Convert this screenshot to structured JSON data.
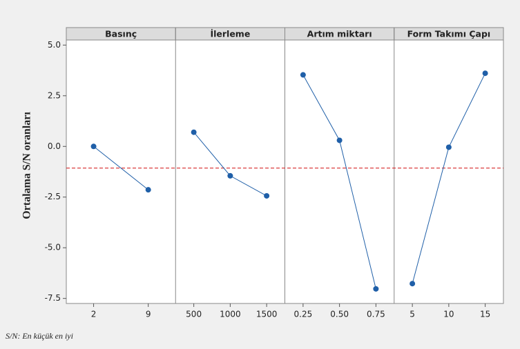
{
  "chart_data": {
    "type": "line",
    "ylabel": "Ortalama S/N oranları",
    "footnote": "S/N: En küçük en iyi",
    "ylim": [
      -7.75,
      5.25
    ],
    "yticks": [
      {
        "value": 5,
        "label": "5.0"
      },
      {
        "value": 2.5,
        "label": "2.5"
      },
      {
        "value": 0,
        "label": "0.0"
      },
      {
        "value": -2.5,
        "label": "-2.5"
      },
      {
        "value": -5,
        "label": "-5.0"
      },
      {
        "value": -7.5,
        "label": "-7.5"
      }
    ],
    "reference_line": -1.07,
    "reference_color": "#d62728",
    "color": "#1f5fa8",
    "panels": [
      {
        "title": "Basınç",
        "categories": [
          "2",
          "9"
        ],
        "values": [
          0.0,
          -2.14
        ]
      },
      {
        "title": "İlerleme",
        "categories": [
          "500",
          "1000",
          "1500"
        ],
        "values": [
          0.7,
          -1.45,
          -2.44
        ]
      },
      {
        "title": "Artım miktarı",
        "categories": [
          "0.25",
          "0.50",
          "0.75"
        ],
        "values": [
          3.53,
          0.3,
          -7.03
        ]
      },
      {
        "title": "Form Takımı Çapı",
        "categories": [
          "5",
          "10",
          "15"
        ],
        "values": [
          -6.77,
          -0.04,
          3.61
        ]
      }
    ]
  }
}
